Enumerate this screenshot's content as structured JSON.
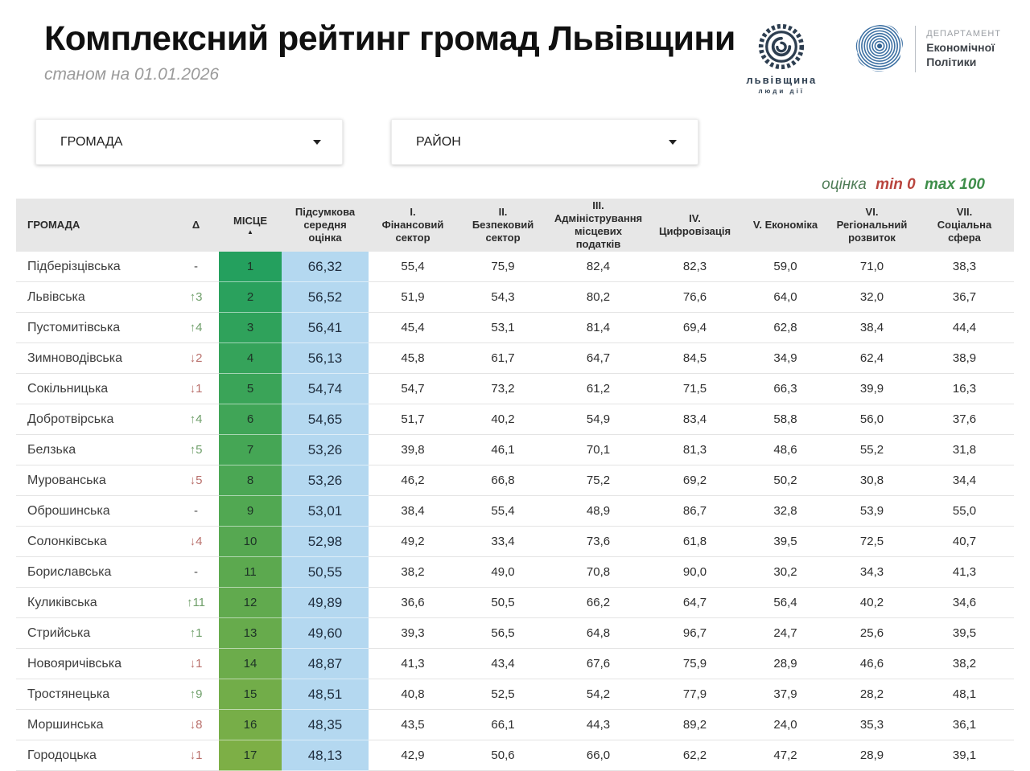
{
  "header": {
    "title": "Комплексний рейтинг громад Львівщини",
    "subtitle": "станом на 01.01.2026",
    "logo_lvivshchyna": {
      "line1": "львівщина",
      "line2": "люди дії"
    },
    "logo_department": {
      "line1": "ДЕПАРТАМЕНТ",
      "line2": "Економічної",
      "line3": "Політики"
    }
  },
  "filters": {
    "hromada": {
      "label": "ГРОМАДА"
    },
    "raion": {
      "label": "РАЙОН"
    }
  },
  "legend": {
    "label": "оцінка",
    "min_label": "min 0",
    "max_label": "max 100"
  },
  "colors": {
    "place_top": "#24a05e",
    "place_bottom": "#7daf46",
    "score_bg": "#b4d8f0",
    "delta_up": "#6f9f6a",
    "delta_down": "#b9706c"
  },
  "table": {
    "columns": [
      {
        "id": "hromada",
        "label": "ГРОМАДА",
        "align": "left"
      },
      {
        "id": "delta",
        "label": "Δ"
      },
      {
        "id": "misce",
        "label": "МІСЦЕ",
        "sort": "asc"
      },
      {
        "id": "score",
        "label": "Підсумкова\nсередня\nоцінка"
      },
      {
        "id": "c1",
        "label": "I.\nФінансовий\nсектор"
      },
      {
        "id": "c2",
        "label": "II.\nБезпековий\nсектор"
      },
      {
        "id": "c3",
        "label": "III.\nАдміністрування\nмісцевих\nподатків"
      },
      {
        "id": "c4",
        "label": "IV.\nЦифровізація"
      },
      {
        "id": "c5",
        "label": "V. Економіка"
      },
      {
        "id": "c6",
        "label": "VI.\nРегіональний\nрозвиток"
      },
      {
        "id": "c7",
        "label": "VII.\nСоціальна\nсфера"
      }
    ],
    "rows": [
      {
        "name": "Підберізцівська",
        "delta": "-",
        "delta_dir": "none",
        "place": "1",
        "score": "66,32",
        "values": [
          "55,4",
          "75,9",
          "82,4",
          "82,3",
          "59,0",
          "71,0",
          "38,3"
        ]
      },
      {
        "name": "Львівська",
        "delta": "↑3",
        "delta_dir": "up",
        "place": "2",
        "score": "56,52",
        "values": [
          "51,9",
          "54,3",
          "80,2",
          "76,6",
          "64,0",
          "32,0",
          "36,7"
        ]
      },
      {
        "name": "Пустомитівська",
        "delta": "↑4",
        "delta_dir": "up",
        "place": "3",
        "score": "56,41",
        "values": [
          "45,4",
          "53,1",
          "81,4",
          "69,4",
          "62,8",
          "38,4",
          "44,4"
        ]
      },
      {
        "name": "Зимноводівська",
        "delta": "↓2",
        "delta_dir": "down",
        "place": "4",
        "score": "56,13",
        "values": [
          "45,8",
          "61,7",
          "64,7",
          "84,5",
          "34,9",
          "62,4",
          "38,9"
        ]
      },
      {
        "name": "Сокільницька",
        "delta": "↓1",
        "delta_dir": "down",
        "place": "5",
        "score": "54,74",
        "values": [
          "54,7",
          "73,2",
          "61,2",
          "71,5",
          "66,3",
          "39,9",
          "16,3"
        ]
      },
      {
        "name": "Добротвірська",
        "delta": "↑4",
        "delta_dir": "up",
        "place": "6",
        "score": "54,65",
        "values": [
          "51,7",
          "40,2",
          "54,9",
          "83,4",
          "58,8",
          "56,0",
          "37,6"
        ]
      },
      {
        "name": "Белзька",
        "delta": "↑5",
        "delta_dir": "up",
        "place": "7",
        "score": "53,26",
        "values": [
          "39,8",
          "46,1",
          "70,1",
          "81,3",
          "48,6",
          "55,2",
          "31,8"
        ]
      },
      {
        "name": "Мурованська",
        "delta": "↓5",
        "delta_dir": "down",
        "place": "8",
        "score": "53,26",
        "values": [
          "46,2",
          "66,8",
          "75,2",
          "69,2",
          "50,2",
          "30,8",
          "34,4"
        ]
      },
      {
        "name": "Оброшинська",
        "delta": "-",
        "delta_dir": "none",
        "place": "9",
        "score": "53,01",
        "values": [
          "38,4",
          "55,4",
          "48,9",
          "86,7",
          "32,8",
          "53,9",
          "55,0"
        ]
      },
      {
        "name": "Солонківська",
        "delta": "↓4",
        "delta_dir": "down",
        "place": "10",
        "score": "52,98",
        "values": [
          "49,2",
          "33,4",
          "73,6",
          "61,8",
          "39,5",
          "72,5",
          "40,7"
        ]
      },
      {
        "name": "Бориславська",
        "delta": "-",
        "delta_dir": "none",
        "place": "11",
        "score": "50,55",
        "values": [
          "38,2",
          "49,0",
          "70,8",
          "90,0",
          "30,2",
          "34,3",
          "41,3"
        ]
      },
      {
        "name": "Куликівська",
        "delta": "↑11",
        "delta_dir": "up",
        "place": "12",
        "score": "49,89",
        "values": [
          "36,6",
          "50,5",
          "66,2",
          "64,7",
          "56,4",
          "40,2",
          "34,6"
        ]
      },
      {
        "name": "Стрийська",
        "delta": "↑1",
        "delta_dir": "up",
        "place": "13",
        "score": "49,60",
        "values": [
          "39,3",
          "56,5",
          "64,8",
          "96,7",
          "24,7",
          "25,6",
          "39,5"
        ]
      },
      {
        "name": "Новояричівська",
        "delta": "↓1",
        "delta_dir": "down",
        "place": "14",
        "score": "48,87",
        "values": [
          "41,3",
          "43,4",
          "67,6",
          "75,9",
          "28,9",
          "46,6",
          "38,2"
        ]
      },
      {
        "name": "Тростянецька",
        "delta": "↑9",
        "delta_dir": "up",
        "place": "15",
        "score": "48,51",
        "values": [
          "40,8",
          "52,5",
          "54,2",
          "77,9",
          "37,9",
          "28,2",
          "48,1"
        ]
      },
      {
        "name": "Моршинська",
        "delta": "↓8",
        "delta_dir": "down",
        "place": "16",
        "score": "48,35",
        "values": [
          "43,5",
          "66,1",
          "44,3",
          "89,2",
          "24,0",
          "35,3",
          "36,1"
        ]
      },
      {
        "name": "Городоцька",
        "delta": "↓1",
        "delta_dir": "down",
        "place": "17",
        "score": "48,13",
        "values": [
          "42,9",
          "50,6",
          "66,0",
          "62,2",
          "47,2",
          "28,9",
          "39,1"
        ]
      }
    ]
  }
}
